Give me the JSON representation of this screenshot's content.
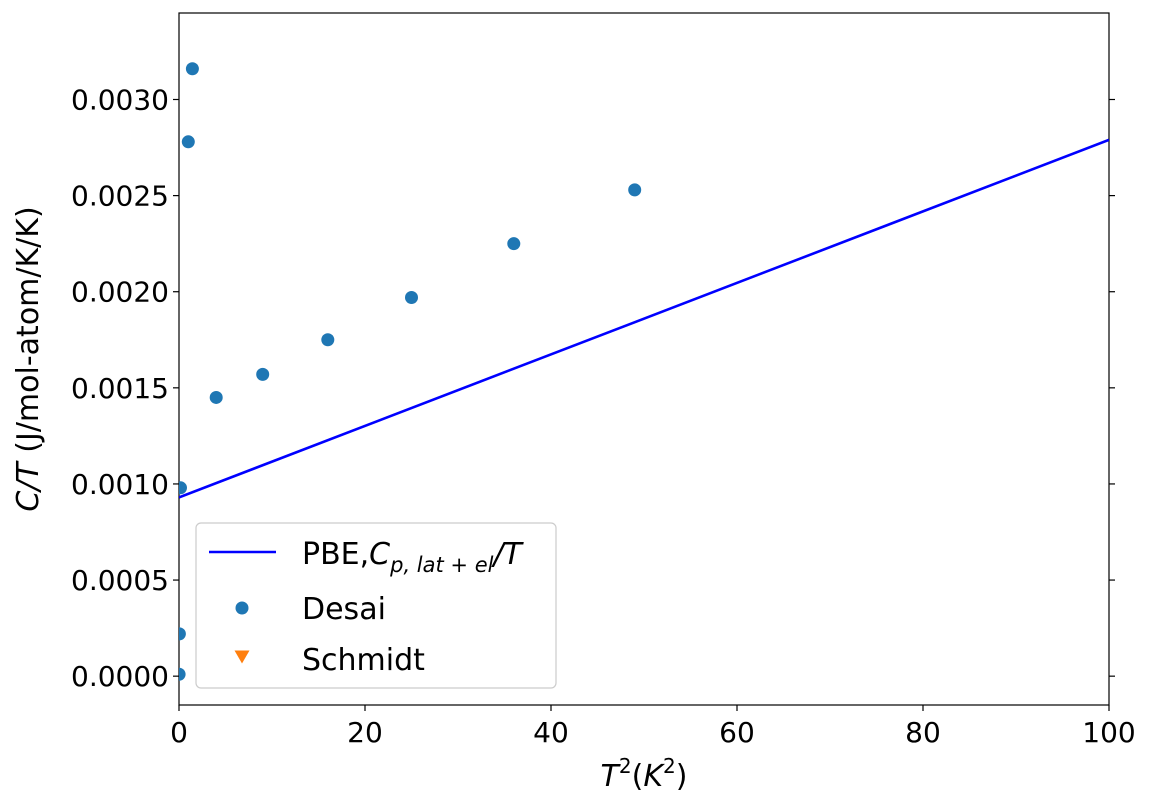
{
  "chart_data": {
    "type": "scatter",
    "title": "",
    "xlabel": {
      "main": "T",
      "sup": "2",
      "unit_open": "(",
      "unit_main": "K",
      "unit_sup": "2",
      "unit_close": ")"
    },
    "ylabel": {
      "italic": "C/T",
      "rest": " (J/mol-atom/K/K)"
    },
    "xlim": [
      0,
      100
    ],
    "ylim": [
      -0.00015,
      0.00345
    ],
    "xticks": [
      {
        "value": 0,
        "label": "0"
      },
      {
        "value": 20,
        "label": "20"
      },
      {
        "value": 40,
        "label": "40"
      },
      {
        "value": 60,
        "label": "60"
      },
      {
        "value": 80,
        "label": "80"
      },
      {
        "value": 100,
        "label": "100"
      }
    ],
    "yticks": [
      {
        "value": 0.0,
        "label": "0.0000"
      },
      {
        "value": 0.0005,
        "label": "0.0005"
      },
      {
        "value": 0.001,
        "label": "0.0010"
      },
      {
        "value": 0.0015,
        "label": "0.0015"
      },
      {
        "value": 0.002,
        "label": "0.0020"
      },
      {
        "value": 0.0025,
        "label": "0.0025"
      },
      {
        "value": 0.003,
        "label": "0.0030"
      }
    ],
    "grid": false,
    "legend_position": "lower-left",
    "series": [
      {
        "name": "PBE,",
        "name_math": {
          "main": "C",
          "sub": "p, lat + el",
          "tail": "/T"
        },
        "kind": "line",
        "color": "#0000ff",
        "x": [
          0,
          100
        ],
        "y": [
          0.00093,
          0.00279
        ]
      },
      {
        "name": "Desai",
        "kind": "scatter",
        "marker": "circle",
        "color": "#1f77b4",
        "x": [
          0.01,
          0.04,
          0.16,
          1.0,
          1.44,
          4,
          9,
          16,
          25,
          36,
          49
        ],
        "y": [
          1e-05,
          0.00022,
          0.00098,
          0.00278,
          0.00316,
          0.00145,
          0.00157,
          0.00175,
          0.00197,
          0.00225,
          0.00253
        ]
      },
      {
        "name": "Schmidt",
        "kind": "scatter",
        "marker": "triangle-down",
        "color": "#ff7f0e",
        "x": [],
        "y": []
      }
    ]
  }
}
